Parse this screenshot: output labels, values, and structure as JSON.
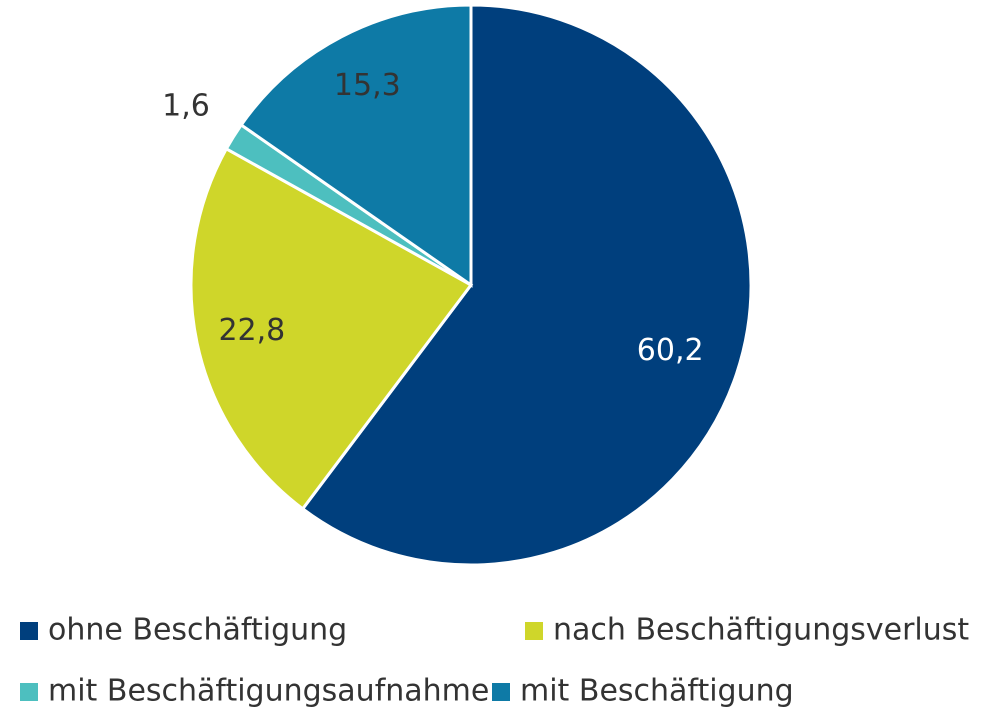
{
  "chart_data": {
    "type": "pie",
    "categories": [
      "ohne Beschäftigung",
      "nach Beschäftigungsverlust",
      "mit Beschäftigungsaufnahme",
      "mit Beschäftigung"
    ],
    "values": [
      60.2,
      22.8,
      1.6,
      15.3
    ],
    "value_labels": [
      "60,2",
      "22,8",
      "1,6",
      "15,3"
    ],
    "colors": [
      "#003f7d",
      "#cfd62a",
      "#4dbfbf",
      "#0e7aa6"
    ],
    "legend": "bottom"
  }
}
